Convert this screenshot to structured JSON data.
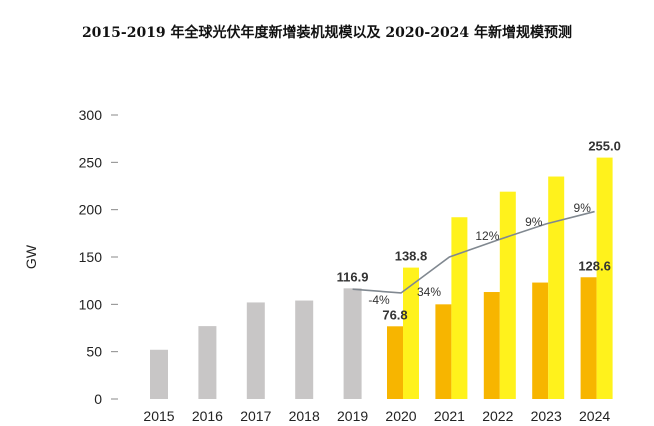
{
  "chart_data": {
    "type": "bar",
    "title": "2015-2019 年全球光伏年度新增装机规模以及 2020-2024 年新增规模预测",
    "ylabel": "GW",
    "xlabel": "",
    "ylim": [
      0,
      300
    ],
    "yticks": [
      0,
      50,
      100,
      150,
      200,
      250,
      300
    ],
    "categories": [
      "2015",
      "2016",
      "2017",
      "2018",
      "2019",
      "2020",
      "2021",
      "2022",
      "2023",
      "2024"
    ],
    "series": [
      {
        "color": "#c8c6c6",
        "values": [
          52,
          77,
          102,
          104,
          116.9,
          null,
          null,
          null,
          null,
          null
        ]
      },
      {
        "color": "#f7b500",
        "values": [
          null,
          null,
          null,
          null,
          null,
          76.8,
          100,
          113,
          123,
          128.6
        ]
      },
      {
        "color": "#fff21c",
        "values": [
          null,
          null,
          null,
          null,
          null,
          138.8,
          192,
          219,
          235,
          255.0
        ]
      },
      {
        "type": "line",
        "color": "#808890",
        "values": [
          null,
          null,
          null,
          null,
          116,
          112,
          150,
          168,
          185,
          198
        ]
      }
    ],
    "data_labels": [
      {
        "category": "2019",
        "text": "116.9"
      },
      {
        "category": "2020",
        "text": "138.8"
      },
      {
        "category": "2020",
        "text": "76.8"
      },
      {
        "category": "2024",
        "text": "255.0"
      },
      {
        "category": "2024",
        "text": "128.6"
      }
    ],
    "growth_labels": [
      {
        "category": "2020",
        "text": "-4%"
      },
      {
        "category": "2020",
        "text": "34%"
      },
      {
        "category": "2021",
        "text": "12%"
      },
      {
        "category": "2022",
        "text": "9%"
      },
      {
        "category": "2023",
        "text": "9%"
      }
    ],
    "grid": false,
    "legend": "none"
  }
}
